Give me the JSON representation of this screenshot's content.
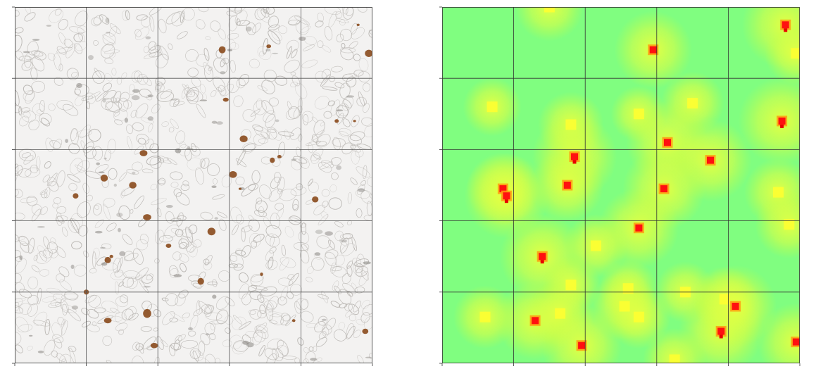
{
  "figure": {
    "panels": [
      {
        "name": "tissue-image",
        "kind": "brightfield histology tile grid (IHC stained)",
        "grid_rows": 5,
        "grid_cols": 5,
        "background_color": "#f3f2f1",
        "membrane_color": "#b9b6b2",
        "stain_color": "#8a4a1c",
        "grid_line_color": "#555555",
        "stained_cells": [
          [
            0.96,
            0.05
          ],
          [
            0.99,
            0.13
          ],
          [
            0.58,
            0.12
          ],
          [
            0.71,
            0.11
          ],
          [
            0.59,
            0.26
          ],
          [
            0.9,
            0.32
          ],
          [
            0.64,
            0.37
          ],
          [
            0.95,
            0.32
          ],
          [
            0.36,
            0.41
          ],
          [
            0.61,
            0.47
          ],
          [
            0.74,
            0.42
          ],
          [
            0.72,
            0.43
          ],
          [
            0.33,
            0.5
          ],
          [
            0.25,
            0.48
          ],
          [
            0.17,
            0.53
          ],
          [
            0.63,
            0.51
          ],
          [
            0.55,
            0.63
          ],
          [
            0.37,
            0.59
          ],
          [
            0.84,
            0.54
          ],
          [
            0.27,
            0.7
          ],
          [
            0.26,
            0.71
          ],
          [
            0.43,
            0.67
          ],
          [
            0.69,
            0.75
          ],
          [
            0.37,
            0.86
          ],
          [
            0.26,
            0.88
          ],
          [
            0.39,
            0.95
          ],
          [
            0.78,
            0.88
          ],
          [
            0.98,
            0.91
          ],
          [
            0.2,
            0.8
          ],
          [
            0.52,
            0.77
          ]
        ]
      },
      {
        "name": "density-heatmap",
        "kind": "detection density heatmap",
        "grid_rows": 5,
        "grid_cols": 5,
        "colormap": [
          "#80fe80",
          "#c8ff40",
          "#ffff30",
          "#ff9a10",
          "#ff1010"
        ],
        "grid_line_color": "#333333",
        "hotspots": [
          [
            0.96,
            0.05,
            1.0
          ],
          [
            0.99,
            0.13,
            0.5
          ],
          [
            0.59,
            0.12,
            0.8
          ],
          [
            0.3,
            0.0,
            0.6
          ],
          [
            0.14,
            0.28,
            0.4
          ],
          [
            0.36,
            0.33,
            0.55
          ],
          [
            0.55,
            0.3,
            0.35
          ],
          [
            0.7,
            0.27,
            0.5
          ],
          [
            0.95,
            0.32,
            1.0
          ],
          [
            0.63,
            0.38,
            0.9
          ],
          [
            0.37,
            0.42,
            0.95
          ],
          [
            0.35,
            0.5,
            0.7
          ],
          [
            0.75,
            0.43,
            0.9
          ],
          [
            0.17,
            0.51,
            0.7
          ],
          [
            0.18,
            0.53,
            0.95
          ],
          [
            0.62,
            0.51,
            0.9
          ],
          [
            0.94,
            0.52,
            0.6
          ],
          [
            0.55,
            0.62,
            0.85
          ],
          [
            0.97,
            0.61,
            0.6
          ],
          [
            0.28,
            0.7,
            0.95
          ],
          [
            0.43,
            0.67,
            0.5
          ],
          [
            0.36,
            0.78,
            0.4
          ],
          [
            0.52,
            0.79,
            0.4
          ],
          [
            0.68,
            0.8,
            0.45
          ],
          [
            0.79,
            0.82,
            0.55
          ],
          [
            0.12,
            0.87,
            0.5
          ],
          [
            0.26,
            0.88,
            0.8
          ],
          [
            0.33,
            0.86,
            0.6
          ],
          [
            0.51,
            0.84,
            0.6
          ],
          [
            0.55,
            0.87,
            0.5
          ],
          [
            0.78,
            0.91,
            0.95
          ],
          [
            0.39,
            0.95,
            0.85
          ],
          [
            0.65,
            0.99,
            0.5
          ],
          [
            0.99,
            0.94,
            0.8
          ],
          [
            0.82,
            0.84,
            0.9
          ]
        ]
      }
    ]
  }
}
